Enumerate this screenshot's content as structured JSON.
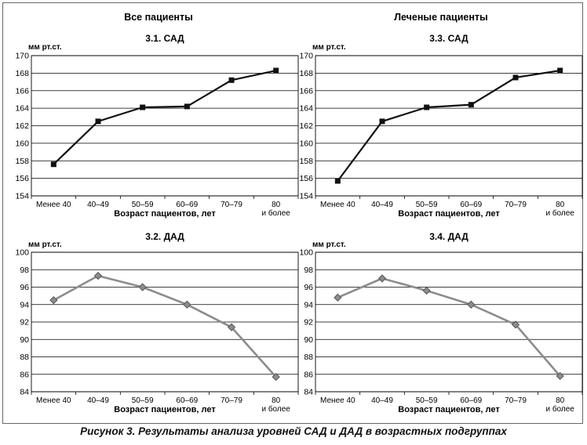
{
  "caption": "Рисунок 3. Результаты анализа уровней САД и ДАД в возрастных подгруппах",
  "column_titles": [
    "Все пациенты",
    "Леченые пациенты"
  ],
  "colors": {
    "sad_line": "#111111",
    "dad_line": "#8c8c8c",
    "dad_marker": "#8c8c8c"
  },
  "chart_data": [
    {
      "id": "3.1",
      "type": "line",
      "title": "3.1. САД",
      "unit_label": "мм рт.ст.",
      "xlabel": "Возраст пациентов, лет",
      "categories": [
        "Менее 40",
        "40–49",
        "50–59",
        "60–69",
        "70–79",
        "80 и более"
      ],
      "values": [
        157.6,
        162.5,
        164.1,
        164.2,
        167.2,
        168.3
      ],
      "ylim": [
        154,
        170
      ],
      "ytick_step": 2,
      "grid": true,
      "marker": "square"
    },
    {
      "id": "3.3",
      "type": "line",
      "title": "3.3. САД",
      "unit_label": "мм рт.ст.",
      "xlabel": "Возраст пациентов, лет",
      "categories": [
        "Менее 40",
        "40–49",
        "50–59",
        "60–69",
        "70–79",
        "80 и более"
      ],
      "values": [
        155.7,
        162.5,
        164.1,
        164.4,
        167.5,
        168.3
      ],
      "ylim": [
        154,
        170
      ],
      "ytick_step": 2,
      "grid": true,
      "marker": "square"
    },
    {
      "id": "3.2",
      "type": "line",
      "title": "3.2. ДАД",
      "unit_label": "мм рт.ст.",
      "xlabel": "Возраст пациентов, лет",
      "categories": [
        "Менее 40",
        "40–49",
        "50–59",
        "60–69",
        "70–79",
        "80 и более"
      ],
      "values": [
        94.5,
        97.3,
        96.0,
        94.0,
        91.4,
        85.7
      ],
      "ylim": [
        84,
        100
      ],
      "ytick_step": 2,
      "grid": true,
      "marker": "diamond"
    },
    {
      "id": "3.4",
      "type": "line",
      "title": "3.4. ДАД",
      "unit_label": "мм рт.ст.",
      "xlabel": "Возраст пациентов, лет",
      "categories": [
        "Менее 40",
        "40–49",
        "50–59",
        "60–69",
        "70–79",
        "80 и более"
      ],
      "values": [
        94.8,
        97.0,
        95.6,
        94.0,
        91.7,
        85.8
      ],
      "ylim": [
        84,
        100
      ],
      "ytick_step": 2,
      "grid": true,
      "marker": "diamond"
    }
  ]
}
